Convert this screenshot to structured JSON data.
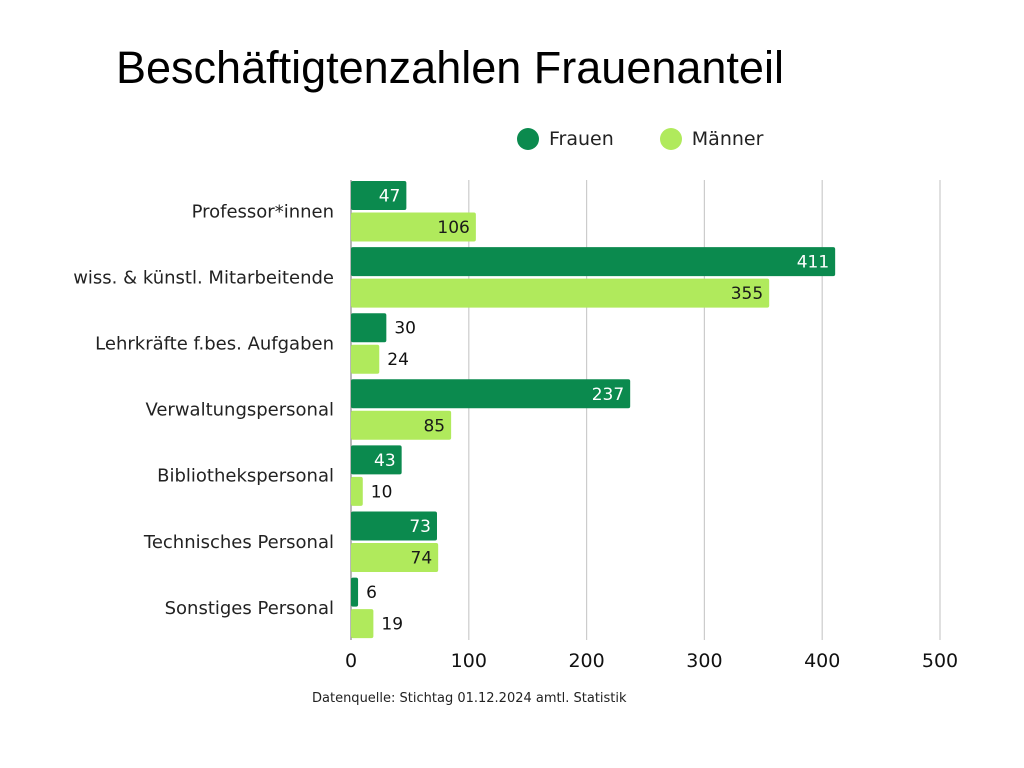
{
  "title": "Beschäftigtenzahlen Frauenanteil",
  "source": "Datenquelle: Stichtag 01.12.2024 amtl. Statistik",
  "chart_data": {
    "type": "bar",
    "orientation": "horizontal",
    "title": "Beschäftigtenzahlen Frauenanteil",
    "categories": [
      "Professor*innen",
      "wiss. & künstl. Mitarbeitende",
      "Lehrkräfte f.bes. Aufgaben",
      "Verwaltungspersonal",
      "Bibliothekspersonal",
      "Technisches Personal",
      "Sonstiges Personal"
    ],
    "series": [
      {
        "name": "Frauen",
        "color": "#0b8a4e",
        "values": [
          47,
          411,
          30,
          237,
          43,
          73,
          6
        ]
      },
      {
        "name": "Männer",
        "color": "#b0ea5c",
        "values": [
          106,
          355,
          24,
          85,
          10,
          74,
          19
        ]
      }
    ],
    "xlim": [
      0,
      500
    ],
    "xticks": [
      "0",
      "100",
      "200",
      "300",
      "400",
      "500"
    ],
    "grid": "vertical",
    "legend_position": "top-right"
  }
}
